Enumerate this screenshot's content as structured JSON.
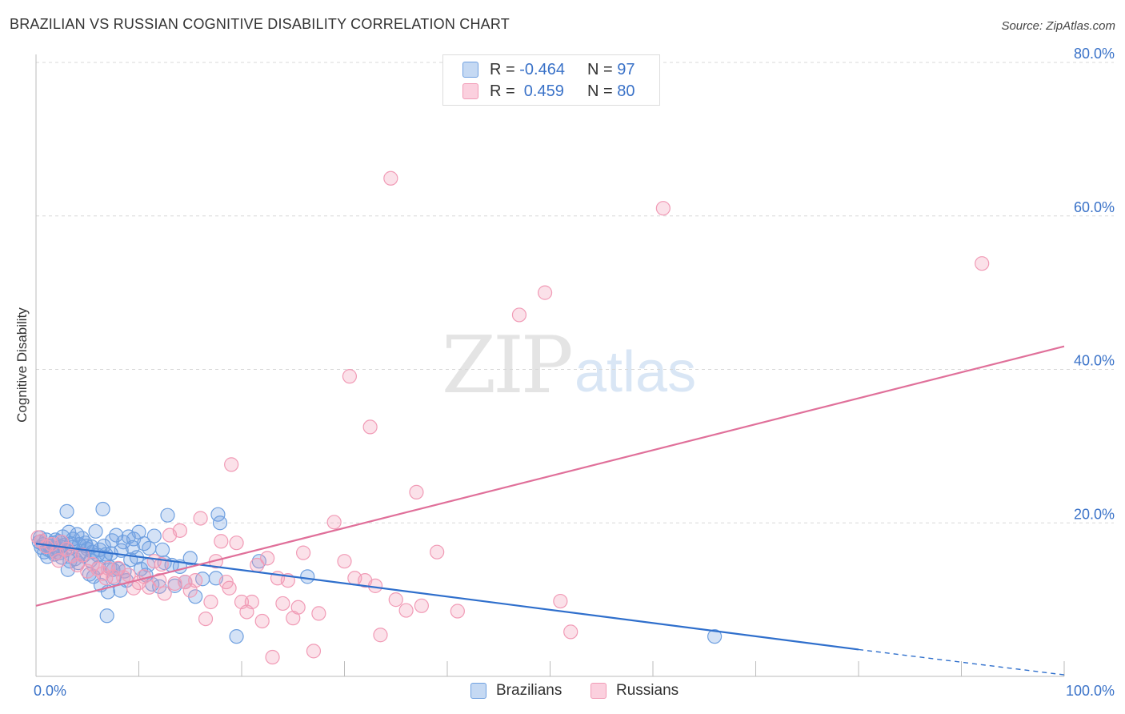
{
  "header": {
    "title": "BRAZILIAN VS RUSSIAN COGNITIVE DISABILITY CORRELATION CHART",
    "source": "Source: ZipAtlas.com"
  },
  "watermark": {
    "zip": "ZIP",
    "atlas": "atlas"
  },
  "legend_top": {
    "rows": [
      {
        "r_label": "R = ",
        "r_value": "-0.464",
        "n_label": "N = ",
        "n_value": "97",
        "color": "#6fa0e0"
      },
      {
        "r_label": "R = ",
        "r_value": " 0.459",
        "n_label": "N = ",
        "n_value": "80",
        "color": "#f19bb6"
      }
    ]
  },
  "chart_data": {
    "type": "scatter",
    "title": "BRAZILIAN VS RUSSIAN COGNITIVE DISABILITY CORRELATION CHART",
    "xlabel": "",
    "ylabel": "Cognitive Disability",
    "xlim": [
      0,
      100
    ],
    "ylim": [
      0,
      80
    ],
    "x_tick_labels": [
      "0.0%",
      "100.0%"
    ],
    "y_ticks": [
      20,
      40,
      60,
      80
    ],
    "y_tick_labels": [
      "20.0%",
      "40.0%",
      "60.0%",
      "80.0%"
    ],
    "grid": "horizontal dashed",
    "legend_placement": "bottom",
    "series": [
      {
        "name": "Brazilians",
        "color": "#6fa0e0",
        "line_color": "#2f6fcc",
        "trend": {
          "x": [
            0,
            80
          ],
          "y": [
            17.3,
            3.5
          ],
          "dashed_to": [
            100,
            0.2
          ]
        },
        "points": [
          [
            0.3,
            17.5
          ],
          [
            0.5,
            16.8
          ],
          [
            0.7,
            17.2
          ],
          [
            0.8,
            16.2
          ],
          [
            1.0,
            17.8
          ],
          [
            1.2,
            16.5
          ],
          [
            1.3,
            17.0
          ],
          [
            1.5,
            16.3
          ],
          [
            1.7,
            17.4
          ],
          [
            1.8,
            15.9
          ],
          [
            2.0,
            16.7
          ],
          [
            2.2,
            17.6
          ],
          [
            2.3,
            16.1
          ],
          [
            2.5,
            15.5
          ],
          [
            2.6,
            18.2
          ],
          [
            2.7,
            17.1
          ],
          [
            2.8,
            16.4
          ],
          [
            3.0,
            21.5
          ],
          [
            3.1,
            13.9
          ],
          [
            3.2,
            18.8
          ],
          [
            3.3,
            15.0
          ],
          [
            3.5,
            16.8
          ],
          [
            3.6,
            17.9
          ],
          [
            3.8,
            15.3
          ],
          [
            4.0,
            18.5
          ],
          [
            4.2,
            17.2
          ],
          [
            4.3,
            16.0
          ],
          [
            4.5,
            18.0
          ],
          [
            4.6,
            15.7
          ],
          [
            4.8,
            17.4
          ],
          [
            5.0,
            16.6
          ],
          [
            5.2,
            13.3
          ],
          [
            5.3,
            15.1
          ],
          [
            5.5,
            16.2
          ],
          [
            5.6,
            13.0
          ],
          [
            5.8,
            18.9
          ],
          [
            6.0,
            15.8
          ],
          [
            6.2,
            16.5
          ],
          [
            6.3,
            11.9
          ],
          [
            6.5,
            21.8
          ],
          [
            6.6,
            17.0
          ],
          [
            6.8,
            15.9
          ],
          [
            6.9,
            7.9
          ],
          [
            7.0,
            11.0
          ],
          [
            7.2,
            14.2
          ],
          [
            7.3,
            16.0
          ],
          [
            7.5,
            13.9
          ],
          [
            7.6,
            12.8
          ],
          [
            7.8,
            18.4
          ],
          [
            8.0,
            14.0
          ],
          [
            8.2,
            11.2
          ],
          [
            8.3,
            16.4
          ],
          [
            8.5,
            17.5
          ],
          [
            8.8,
            12.5
          ],
          [
            9.0,
            18.2
          ],
          [
            9.2,
            15.2
          ],
          [
            9.5,
            17.9
          ],
          [
            9.8,
            15.5
          ],
          [
            10.0,
            18.8
          ],
          [
            10.2,
            14.0
          ],
          [
            10.5,
            17.3
          ],
          [
            10.7,
            13.2
          ],
          [
            11.0,
            16.7
          ],
          [
            11.3,
            12.0
          ],
          [
            11.5,
            18.3
          ],
          [
            12.0,
            11.7
          ],
          [
            12.3,
            16.5
          ],
          [
            12.5,
            14.8
          ],
          [
            12.8,
            21.0
          ],
          [
            13.2,
            14.5
          ],
          [
            13.5,
            11.8
          ],
          [
            14.0,
            14.3
          ],
          [
            14.5,
            12.3
          ],
          [
            15.0,
            15.4
          ],
          [
            15.5,
            10.4
          ],
          [
            17.5,
            12.8
          ],
          [
            17.7,
            21.1
          ],
          [
            17.9,
            20.0
          ],
          [
            19.5,
            5.2
          ],
          [
            21.7,
            15.0
          ],
          [
            26.4,
            13.0
          ],
          [
            66.0,
            5.2
          ],
          [
            0.4,
            18.1
          ],
          [
            1.1,
            15.6
          ],
          [
            1.9,
            17.8
          ],
          [
            2.4,
            16.9
          ],
          [
            3.4,
            17.3
          ],
          [
            4.1,
            14.8
          ],
          [
            4.9,
            17.0
          ],
          [
            5.4,
            16.9
          ],
          [
            6.1,
            14.2
          ],
          [
            6.7,
            15.5
          ],
          [
            7.4,
            17.7
          ],
          [
            8.6,
            13.7
          ],
          [
            9.4,
            16.8
          ],
          [
            10.9,
            14.5
          ],
          [
            16.2,
            12.7
          ]
        ]
      },
      {
        "name": "Russians",
        "color": "#f19bb6",
        "line_color": "#e0709a",
        "trend": {
          "x": [
            0,
            100
          ],
          "y": [
            9.2,
            43.0
          ]
        },
        "points": [
          [
            0.2,
            18.1
          ],
          [
            0.5,
            17.6
          ],
          [
            1.0,
            16.9
          ],
          [
            1.5,
            17.2
          ],
          [
            2.0,
            16.1
          ],
          [
            2.5,
            17.5
          ],
          [
            3.0,
            16.6
          ],
          [
            3.5,
            15.7
          ],
          [
            4.0,
            14.5
          ],
          [
            4.5,
            15.8
          ],
          [
            5.0,
            13.7
          ],
          [
            5.5,
            14.6
          ],
          [
            6.0,
            14.0
          ],
          [
            6.5,
            13.4
          ],
          [
            7.0,
            14.1
          ],
          [
            7.5,
            13.0
          ],
          [
            8.0,
            14.1
          ],
          [
            8.5,
            12.9
          ],
          [
            9.0,
            13.2
          ],
          [
            9.5,
            11.5
          ],
          [
            10.0,
            12.2
          ],
          [
            10.5,
            13.0
          ],
          [
            11.0,
            11.6
          ],
          [
            11.5,
            15.0
          ],
          [
            12.0,
            12.5
          ],
          [
            12.5,
            10.8
          ],
          [
            13.0,
            18.4
          ],
          [
            13.5,
            12.1
          ],
          [
            14.0,
            19.0
          ],
          [
            14.5,
            12.3
          ],
          [
            15.0,
            11.2
          ],
          [
            15.5,
            12.5
          ],
          [
            16.0,
            20.6
          ],
          [
            16.5,
            7.5
          ],
          [
            17.0,
            9.7
          ],
          [
            17.5,
            15.0
          ],
          [
            18.0,
            17.6
          ],
          [
            18.5,
            12.3
          ],
          [
            19.0,
            27.6
          ],
          [
            19.5,
            17.4
          ],
          [
            20.0,
            9.7
          ],
          [
            20.5,
            8.4
          ],
          [
            21.0,
            9.7
          ],
          [
            21.5,
            14.5
          ],
          [
            22.0,
            7.2
          ],
          [
            22.5,
            15.4
          ],
          [
            23.0,
            2.5
          ],
          [
            23.5,
            12.8
          ],
          [
            24.0,
            9.5
          ],
          [
            24.5,
            12.5
          ],
          [
            25.0,
            7.6
          ],
          [
            25.5,
            9.0
          ],
          [
            26.0,
            16.1
          ],
          [
            27.0,
            3.3
          ],
          [
            27.5,
            8.2
          ],
          [
            29.0,
            20.1
          ],
          [
            30.0,
            15.0
          ],
          [
            30.5,
            39.1
          ],
          [
            31.0,
            12.8
          ],
          [
            32.0,
            12.5
          ],
          [
            32.5,
            32.5
          ],
          [
            33.0,
            11.8
          ],
          [
            33.5,
            5.4
          ],
          [
            34.5,
            64.9
          ],
          [
            35.0,
            10.0
          ],
          [
            36.0,
            8.6
          ],
          [
            37.0,
            24.0
          ],
          [
            37.5,
            9.2
          ],
          [
            39.0,
            16.2
          ],
          [
            41.0,
            8.5
          ],
          [
            47.0,
            47.1
          ],
          [
            49.5,
            50.0
          ],
          [
            51.0,
            9.8
          ],
          [
            52.0,
            5.8
          ],
          [
            61.0,
            61.0
          ],
          [
            92.0,
            53.8
          ],
          [
            2.2,
            15.1
          ],
          [
            6.8,
            12.8
          ],
          [
            12.2,
            14.6
          ],
          [
            18.8,
            11.5
          ]
        ]
      }
    ]
  }
}
